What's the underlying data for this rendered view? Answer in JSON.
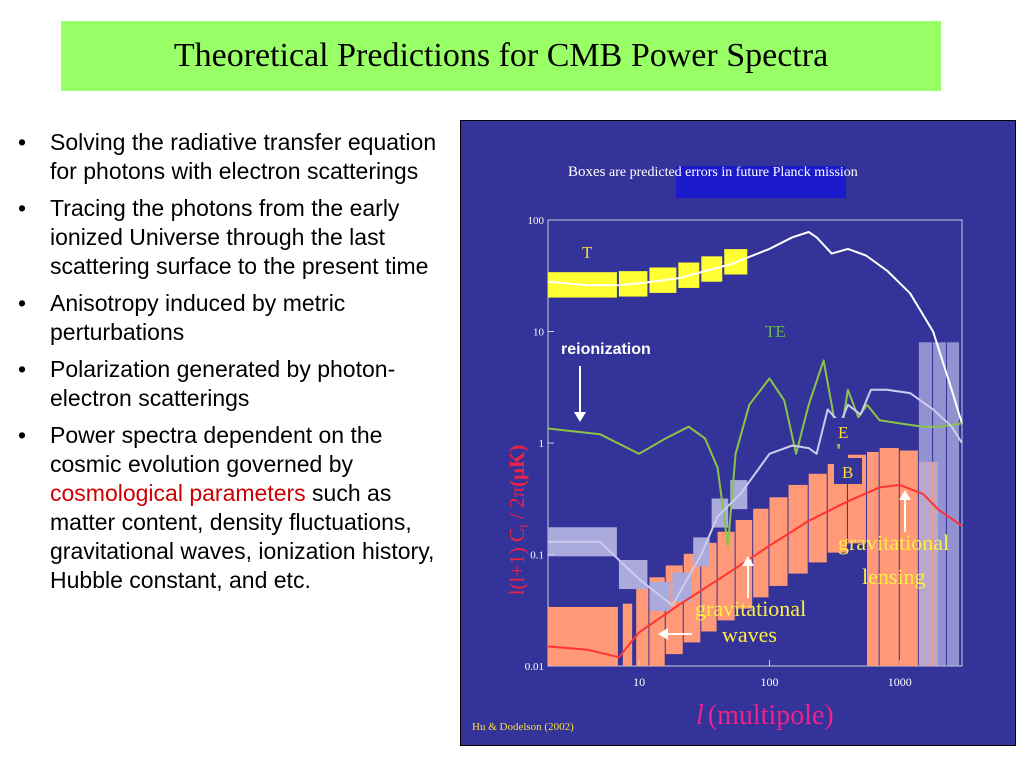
{
  "slide": {
    "title": "Theoretical Predictions for CMB Power Spectra",
    "bullets": [
      {
        "text": "Solving the radiative transfer equation for photons with electron scatterings"
      },
      {
        "text": "Tracing the photons from the early ionized Universe through the last scattering surface to the present time"
      },
      {
        "text": "Anisotropy induced by metric perturbations"
      },
      {
        "text": "Polarization generated by photon-electron scatterings"
      },
      {
        "pre": "Power spectra dependent on the cosmic evolution governed by ",
        "highlight": "cosmological parameters",
        "post": " such as matter content, density fluctuations, gravitational waves, ionization history, Hubble constant, and etc."
      }
    ]
  },
  "chart_data": {
    "type": "line",
    "xscale": "log",
    "yscale": "log",
    "xlim": [
      2,
      3000
    ],
    "ylim": [
      0.01,
      100
    ],
    "xlabel_symbol": "l",
    "xlabel_rest": "(multipole)",
    "ylabel": "l(l+1) C",
    "ylabel_sub": "l",
    "ylabel_tail": " / 2π",
    "ylabel_unit": "(μK)",
    "xticks": [
      "10",
      "100",
      "1000"
    ],
    "yticks": [
      "0.01",
      "0.1",
      "1",
      "10",
      "100"
    ],
    "caption_boxes": "Boxes",
    "caption_rest": " are predicted errors in future Planck mission",
    "credit": "Hu & Dodelson (2002)",
    "labels": {
      "reionization": "reionization",
      "grav_waves_1": "gravitational",
      "grav_waves_2": "waves",
      "grav_lensing_1": "gravitational",
      "grav_lensing_2": "lensing"
    },
    "colors": {
      "T": "#ffffff",
      "TE": "#8bc34a",
      "E": "#ccccee",
      "B": "#ff3333",
      "boxT": "#ffff33",
      "boxE": "#aaaadd",
      "boxB": "#ff9977",
      "panel": "#333399"
    },
    "series": [
      {
        "name": "T",
        "points": [
          [
            2,
            28
          ],
          [
            4,
            26
          ],
          [
            7,
            26
          ],
          [
            10,
            27
          ],
          [
            20,
            30
          ],
          [
            50,
            40
          ],
          [
            100,
            55
          ],
          [
            150,
            70
          ],
          [
            200,
            78
          ],
          [
            230,
            70
          ],
          [
            300,
            50
          ],
          [
            400,
            55
          ],
          [
            550,
            48
          ],
          [
            800,
            35
          ],
          [
            1200,
            22
          ],
          [
            1800,
            10
          ],
          [
            2500,
            3
          ],
          [
            3000,
            1.5
          ]
        ]
      },
      {
        "name": "TE",
        "points": [
          [
            2,
            1.35
          ],
          [
            5,
            1.2
          ],
          [
            10,
            0.8
          ],
          [
            16,
            1.1
          ],
          [
            24,
            1.4
          ],
          [
            32,
            1.1
          ],
          [
            40,
            0.6
          ],
          [
            48,
            0.12
          ],
          [
            55,
            0.8
          ],
          [
            70,
            2.2
          ],
          [
            100,
            3.8
          ],
          [
            130,
            2.4
          ],
          [
            160,
            0.8
          ],
          [
            200,
            2.2
          ],
          [
            260,
            5.5
          ],
          [
            300,
            2.2
          ],
          [
            340,
            0.9
          ],
          [
            400,
            3
          ],
          [
            480,
            1.7
          ],
          [
            560,
            2.2
          ],
          [
            700,
            1.6
          ],
          [
            1000,
            1.5
          ],
          [
            1500,
            1.4
          ],
          [
            2000,
            1.4
          ],
          [
            3000,
            1.5
          ]
        ]
      },
      {
        "name": "E",
        "points": [
          [
            2,
            0.13
          ],
          [
            5,
            0.13
          ],
          [
            10,
            0.06
          ],
          [
            18,
            0.035
          ],
          [
            30,
            0.1
          ],
          [
            40,
            0.22
          ],
          [
            60,
            0.35
          ],
          [
            100,
            0.8
          ],
          [
            150,
            0.95
          ],
          [
            200,
            0.9
          ],
          [
            230,
            0.8
          ],
          [
            280,
            2
          ],
          [
            350,
            1.5
          ],
          [
            400,
            2.2
          ],
          [
            500,
            1.8
          ],
          [
            600,
            3
          ],
          [
            800,
            3
          ],
          [
            1200,
            2.8
          ],
          [
            1800,
            2
          ],
          [
            2500,
            1.4
          ],
          [
            3000,
            1
          ]
        ]
      },
      {
        "name": "B",
        "points": [
          [
            2,
            0.015
          ],
          [
            4,
            0.014
          ],
          [
            7,
            0.012
          ],
          [
            10,
            0.02
          ],
          [
            20,
            0.035
          ],
          [
            50,
            0.07
          ],
          [
            100,
            0.12
          ],
          [
            200,
            0.2
          ],
          [
            400,
            0.3
          ],
          [
            700,
            0.4
          ],
          [
            1000,
            0.42
          ],
          [
            1500,
            0.35
          ],
          [
            2000,
            0.25
          ],
          [
            3000,
            0.18
          ]
        ]
      }
    ]
  }
}
